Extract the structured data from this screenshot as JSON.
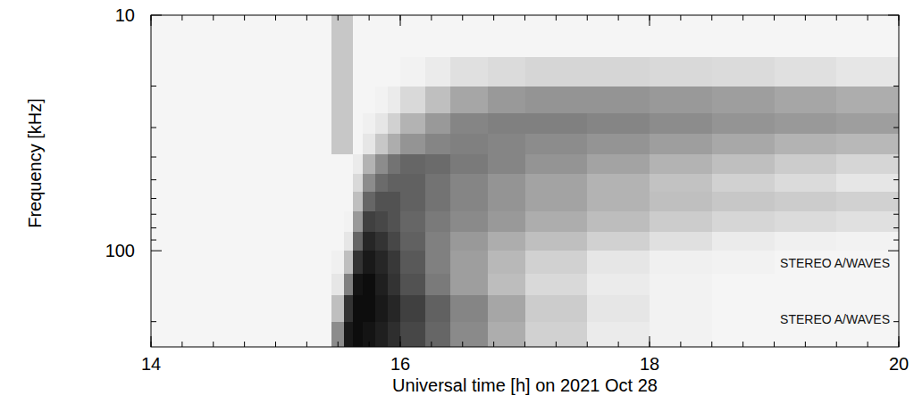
{
  "chart_data": {
    "type": "heatmap",
    "x_label": "Universal time [h] on 2021 Oct 28",
    "y_label": "Frequency [kHz]",
    "annotations": [
      "STEREO A/WAVES",
      "STEREO A/WAVES"
    ],
    "x": [
      14,
      15.45,
      15.55,
      15.62,
      15.7,
      15.8,
      15.9,
      16.0,
      16.2,
      16.4,
      16.7,
      17.0,
      17.5,
      18.0,
      18.5,
      19.0,
      19.5,
      20
    ],
    "y": [
      10,
      15,
      20,
      26,
      32,
      39,
      47,
      56,
      68,
      83,
      100,
      125,
      155,
      200,
      256
    ],
    "z": [
      [
        4,
        22,
        22,
        4,
        4,
        4,
        4,
        4,
        4,
        4,
        4,
        4,
        4,
        4,
        4,
        4,
        4
      ],
      [
        4,
        22,
        22,
        4,
        4,
        4,
        4,
        5,
        8,
        12,
        14,
        16,
        16,
        15,
        14,
        12,
        10
      ],
      [
        4,
        22,
        22,
        4,
        4,
        5,
        8,
        15,
        25,
        35,
        40,
        42,
        42,
        40,
        38,
        35,
        32
      ],
      [
        4,
        22,
        22,
        4,
        6,
        10,
        18,
        30,
        40,
        48,
        50,
        50,
        48,
        45,
        42,
        40,
        38
      ],
      [
        4,
        22,
        22,
        4,
        10,
        22,
        32,
        42,
        48,
        50,
        48,
        45,
        42,
        38,
        34,
        30,
        28
      ],
      [
        4,
        4,
        4,
        8,
        30,
        45,
        55,
        60,
        58,
        52,
        48,
        42,
        36,
        30,
        25,
        20,
        16
      ],
      [
        4,
        4,
        4,
        15,
        45,
        58,
        62,
        62,
        55,
        48,
        42,
        36,
        30,
        24,
        18,
        14,
        10
      ],
      [
        4,
        4,
        4,
        25,
        60,
        68,
        68,
        62,
        55,
        48,
        42,
        36,
        30,
        25,
        22,
        20,
        18
      ],
      [
        4,
        4,
        5,
        40,
        75,
        72,
        68,
        60,
        52,
        46,
        40,
        32,
        26,
        20,
        16,
        14,
        12
      ],
      [
        4,
        4,
        10,
        60,
        85,
        80,
        72,
        62,
        50,
        40,
        32,
        25,
        18,
        12,
        8,
        6,
        5
      ],
      [
        4,
        6,
        25,
        80,
        90,
        85,
        78,
        65,
        50,
        38,
        28,
        18,
        10,
        6,
        5,
        4,
        4
      ],
      [
        4,
        10,
        50,
        92,
        95,
        88,
        80,
        68,
        52,
        38,
        26,
        15,
        8,
        5,
        4,
        4,
        4
      ],
      [
        4,
        25,
        80,
        95,
        95,
        90,
        85,
        75,
        62,
        48,
        35,
        20,
        10,
        5,
        4,
        4,
        4
      ],
      [
        4,
        45,
        90,
        95,
        92,
        88,
        82,
        72,
        60,
        46,
        32,
        18,
        8,
        5,
        4,
        4,
        4
      ]
    ],
    "zlim": [
      0,
      100
    ],
    "xlim": [
      14,
      20
    ],
    "xticks": [
      14,
      16,
      18,
      20
    ],
    "ylim": [
      256,
      10
    ],
    "yticks": [
      10,
      100
    ],
    "log": "y",
    "grid": false
  }
}
